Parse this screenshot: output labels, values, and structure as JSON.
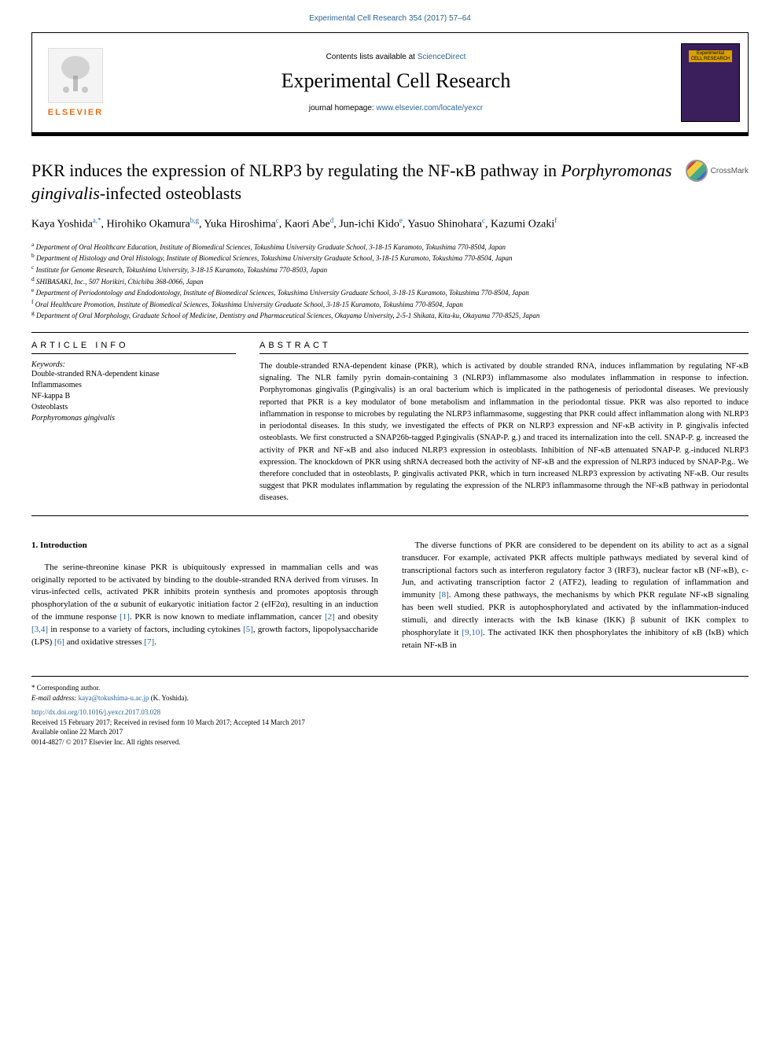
{
  "header": {
    "running_head": "Experimental Cell Research 354 (2017) 57–64",
    "contents_prefix": "Contents lists available at ",
    "contents_link": "ScienceDirect",
    "journal_name": "Experimental Cell Research",
    "homepage_prefix": "journal homepage: ",
    "homepage_link": "www.elsevier.com/locate/yexcr",
    "elsevier_label": "ELSEVIER",
    "cover_label_top": "Experimental",
    "cover_label_bottom": "CELL RESEARCH",
    "crossmark_label": "CrossMark"
  },
  "article": {
    "title_plain": "PKR induces the expression of NLRP3 by regulating the NF-κB pathway in ",
    "title_italic": "Porphyromonas gingivalis",
    "title_tail": "-infected osteoblasts",
    "authors_html": "Kaya Yoshida<sup>a,*</sup>, Hirohiko Okamura<sup>b,g</sup>, Yuka Hiroshima<sup>c</sup>, Kaori Abe<sup>d</sup>, Jun-ichi Kido<sup>e</sup>, Yasuo Shinohara<sup>c</sup>, Kazumi Ozaki<sup>f</sup>",
    "affiliations": [
      "a Department of Oral Healthcare Education, Institute of Biomedical Sciences, Tokushima University Graduate School, 3-18-15 Kuramoto, Tokushima 770-8504, Japan",
      "b Department of Histology and Oral Histology, Institute of Biomedical Sciences, Tokushima University Graduate School, 3-18-15 Kuramoto, Tokushima 770-8504, Japan",
      "c Institute for Genome Research, Tokushima University, 3-18-15 Kuramoto, Tokushima 770-8503, Japan",
      "d SHIBASAKI, Inc., 507 Horikiri, Chichibu 368-0066, Japan",
      "e Department of Periodontology and Endodontology, Institute of Biomedical Sciences, Tokushima University Graduate School, 3-18-15 Kuramoto, Tokushima 770-8504, Japan",
      "f Oral Healthcare Promotion, Institute of Biomedical Sciences, Tokushima University Graduate School, 3-18-15 Kuramoto, Tokushima 770-8504, Japan",
      "g Department of Oral Morphology, Graduate School of Medicine, Dentistry and Pharmaceutical Sciences, Okayama University, 2-5-1 Shikata, Kita-ku, Okayama 770-8525, Japan"
    ]
  },
  "article_info": {
    "heading": "ARTICLE INFO",
    "keywords_label": "Keywords:",
    "keywords": [
      "Double-stranded RNA-dependent kinase",
      "Inflammasomes",
      "NF-kappa B",
      "Osteoblasts",
      "Porphyromonas gingivalis"
    ]
  },
  "abstract": {
    "heading": "ABSTRACT",
    "text": "The double-stranded RNA-dependent kinase (PKR), which is activated by double stranded RNA, induces inflammation by regulating NF-κB signaling. The NLR family pyrin domain-containing 3 (NLRP3) inflammasome also modulates inflammation in response to infection. Porphyromonas gingivalis (P.gingivalis) is an oral bacterium which is implicated in the pathogenesis of periodontal diseases. We previously reported that PKR is a key modulator of bone metabolism and inflammation in the periodontal tissue. PKR was also reported to induce inflammation in response to microbes by regulating the NLRP3 inflammasome, suggesting that PKR could affect inflammation along with NLRP3 in periodontal diseases. In this study, we investigated the effects of PKR on NLRP3 expression and NF-κB activity in P. gingivalis infected osteoblasts. We first constructed a SNAP26b-tagged P.gingivalis (SNAP-P. g.) and traced its internalization into the cell. SNAP-P. g. increased the activity of PKR and NF-κB and also induced NLRP3 expression in osteoblasts. Inhibition of NF-κB attenuated SNAP-P. g.-induced NLRP3 expression. The knockdown of PKR using shRNA decreased both the activity of NF-κB and the expression of NLRP3 induced by SNAP-P.g.. We therefore concluded that in osteoblasts, P. gingivalis activated PKR, which in turn increased NLRP3 expression by activating NF-κB. Our results suggest that PKR modulates inflammation by regulating the expression of the NLRP3 inflammasome through the NF-κB pathway in periodontal diseases."
  },
  "body": {
    "intro_heading": "1. Introduction",
    "col1_p1": "The serine-threonine kinase PKR is ubiquitously expressed in mammalian cells and was originally reported to be activated by binding to the double-stranded RNA derived from viruses. In virus-infected cells, activated PKR inhibits protein synthesis and promotes apoptosis through phosphorylation of the α subunit of eukaryotic initiation factor 2 (eIF2α), resulting in an induction of the immune response ",
    "ref1": "[1]",
    "col1_p1b": ". PKR is now known to mediate inflammation, cancer ",
    "ref2": "[2]",
    "col1_p1c": " and obesity ",
    "ref34": "[3,4]",
    "col1_p1d": " in response to a variety of factors, including cytokines ",
    "ref5": "[5]",
    "col1_p1e": ", growth factors, lipopolysaccharide (LPS) ",
    "ref6": "[6]",
    "col1_p1f": " and oxidative stresses ",
    "ref7": "[7]",
    "col1_p1g": ".",
    "col2_p1": "The diverse functions of PKR are considered to be dependent on its ability to act as a signal transducer. For example, activated PKR affects multiple pathways mediated by several kind of transcriptional factors such as interferon regulatory factor 3 (IRF3), nuclear factor κB (NF-κB), c-Jun, and activating transcription factor 2 (ATF2), leading to regulation of inflammation and immunity ",
    "ref8": "[8]",
    "col2_p1b": ". Among these pathways, the mechanisms by which PKR regulate NF-κB signaling has been well studied. PKR is autophosphorylated and activated by the inflammation-induced stimuli, and directly interacts with the IκB kinase (IKK) β subunit of IKK complex to phosphorylate it ",
    "ref910": "[9,10]",
    "col2_p1c": ". The activated IKK then phosphorylates the inhibitory of κB (IκB) which retain NF-κB in"
  },
  "footer": {
    "corr_label": "* Corresponding author.",
    "email_label": "E-mail address: ",
    "email": "kaya@tokushima-u.ac.jp",
    "email_tail": " (K. Yoshida).",
    "doi": "http://dx.doi.org/10.1016/j.yexcr.2017.03.028",
    "received": "Received 15 February 2017; Received in revised form 10 March 2017; Accepted 14 March 2017",
    "available": "Available online 22 March 2017",
    "copyright": "0014-4827/ © 2017 Elsevier Inc. All rights reserved."
  },
  "colors": {
    "link": "#2a6496",
    "elsevier_orange": "#e8701a",
    "cover_bg": "#3a1f5c",
    "cover_banner": "#d9a000"
  }
}
